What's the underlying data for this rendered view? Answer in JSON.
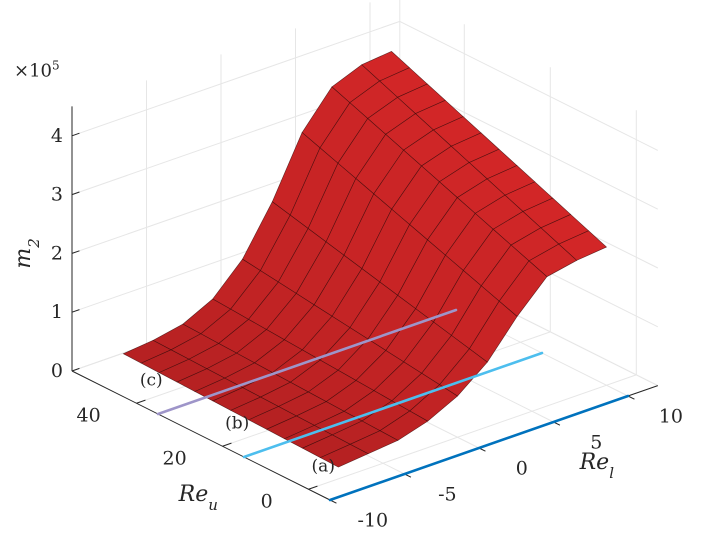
{
  "chart_data": {
    "type": "surface",
    "title": "",
    "xlabel": "Re",
    "xlabel_sub": "l",
    "ylabel": "Re",
    "ylabel_sub": "u",
    "zlabel": "m",
    "zlabel_sub": "2",
    "z_multiplier": "×10",
    "z_multiplier_exp": "5",
    "xlim": [
      -10,
      12
    ],
    "ylim": [
      -5,
      55
    ],
    "zlim": [
      0,
      4.5
    ],
    "x_ticks": [
      "-10",
      "-5",
      "0",
      "5",
      "10"
    ],
    "y_ticks": [
      "0",
      "20",
      "40"
    ],
    "z_ticks": [
      "0",
      "1",
      "2",
      "3",
      "4"
    ],
    "grid": true,
    "surface": {
      "name": "m2",
      "color": "#d62728",
      "x": [
        -8,
        -6,
        -4,
        -2,
        0,
        2,
        4,
        6,
        8,
        10
      ],
      "y_range": [
        0,
        50
      ],
      "z_at_y_max": [
        0.3,
        0.35,
        0.45,
        0.7,
        1.2,
        2.0,
        3.0,
        3.6,
        3.8,
        3.85
      ],
      "z_at_y_min": [
        0.2,
        0.25,
        0.3,
        0.45,
        0.7,
        1.1,
        1.7,
        2.2,
        2.3,
        2.35
      ]
    },
    "series": [
      {
        "label": "(a)",
        "color": "#0072bd",
        "x": [
          -10,
          10
        ],
        "y": [
          -5,
          -5
        ],
        "z": [
          0,
          0
        ]
      },
      {
        "label": "(b)",
        "color": "#4dbeee",
        "x": [
          -10,
          10
        ],
        "y": [
          15,
          15
        ],
        "z": [
          0,
          0
        ]
      },
      {
        "label": "(c)",
        "color": "#9e95c9",
        "x": [
          -10,
          10
        ],
        "y": [
          35,
          35
        ],
        "z": [
          0,
          0
        ]
      }
    ]
  }
}
